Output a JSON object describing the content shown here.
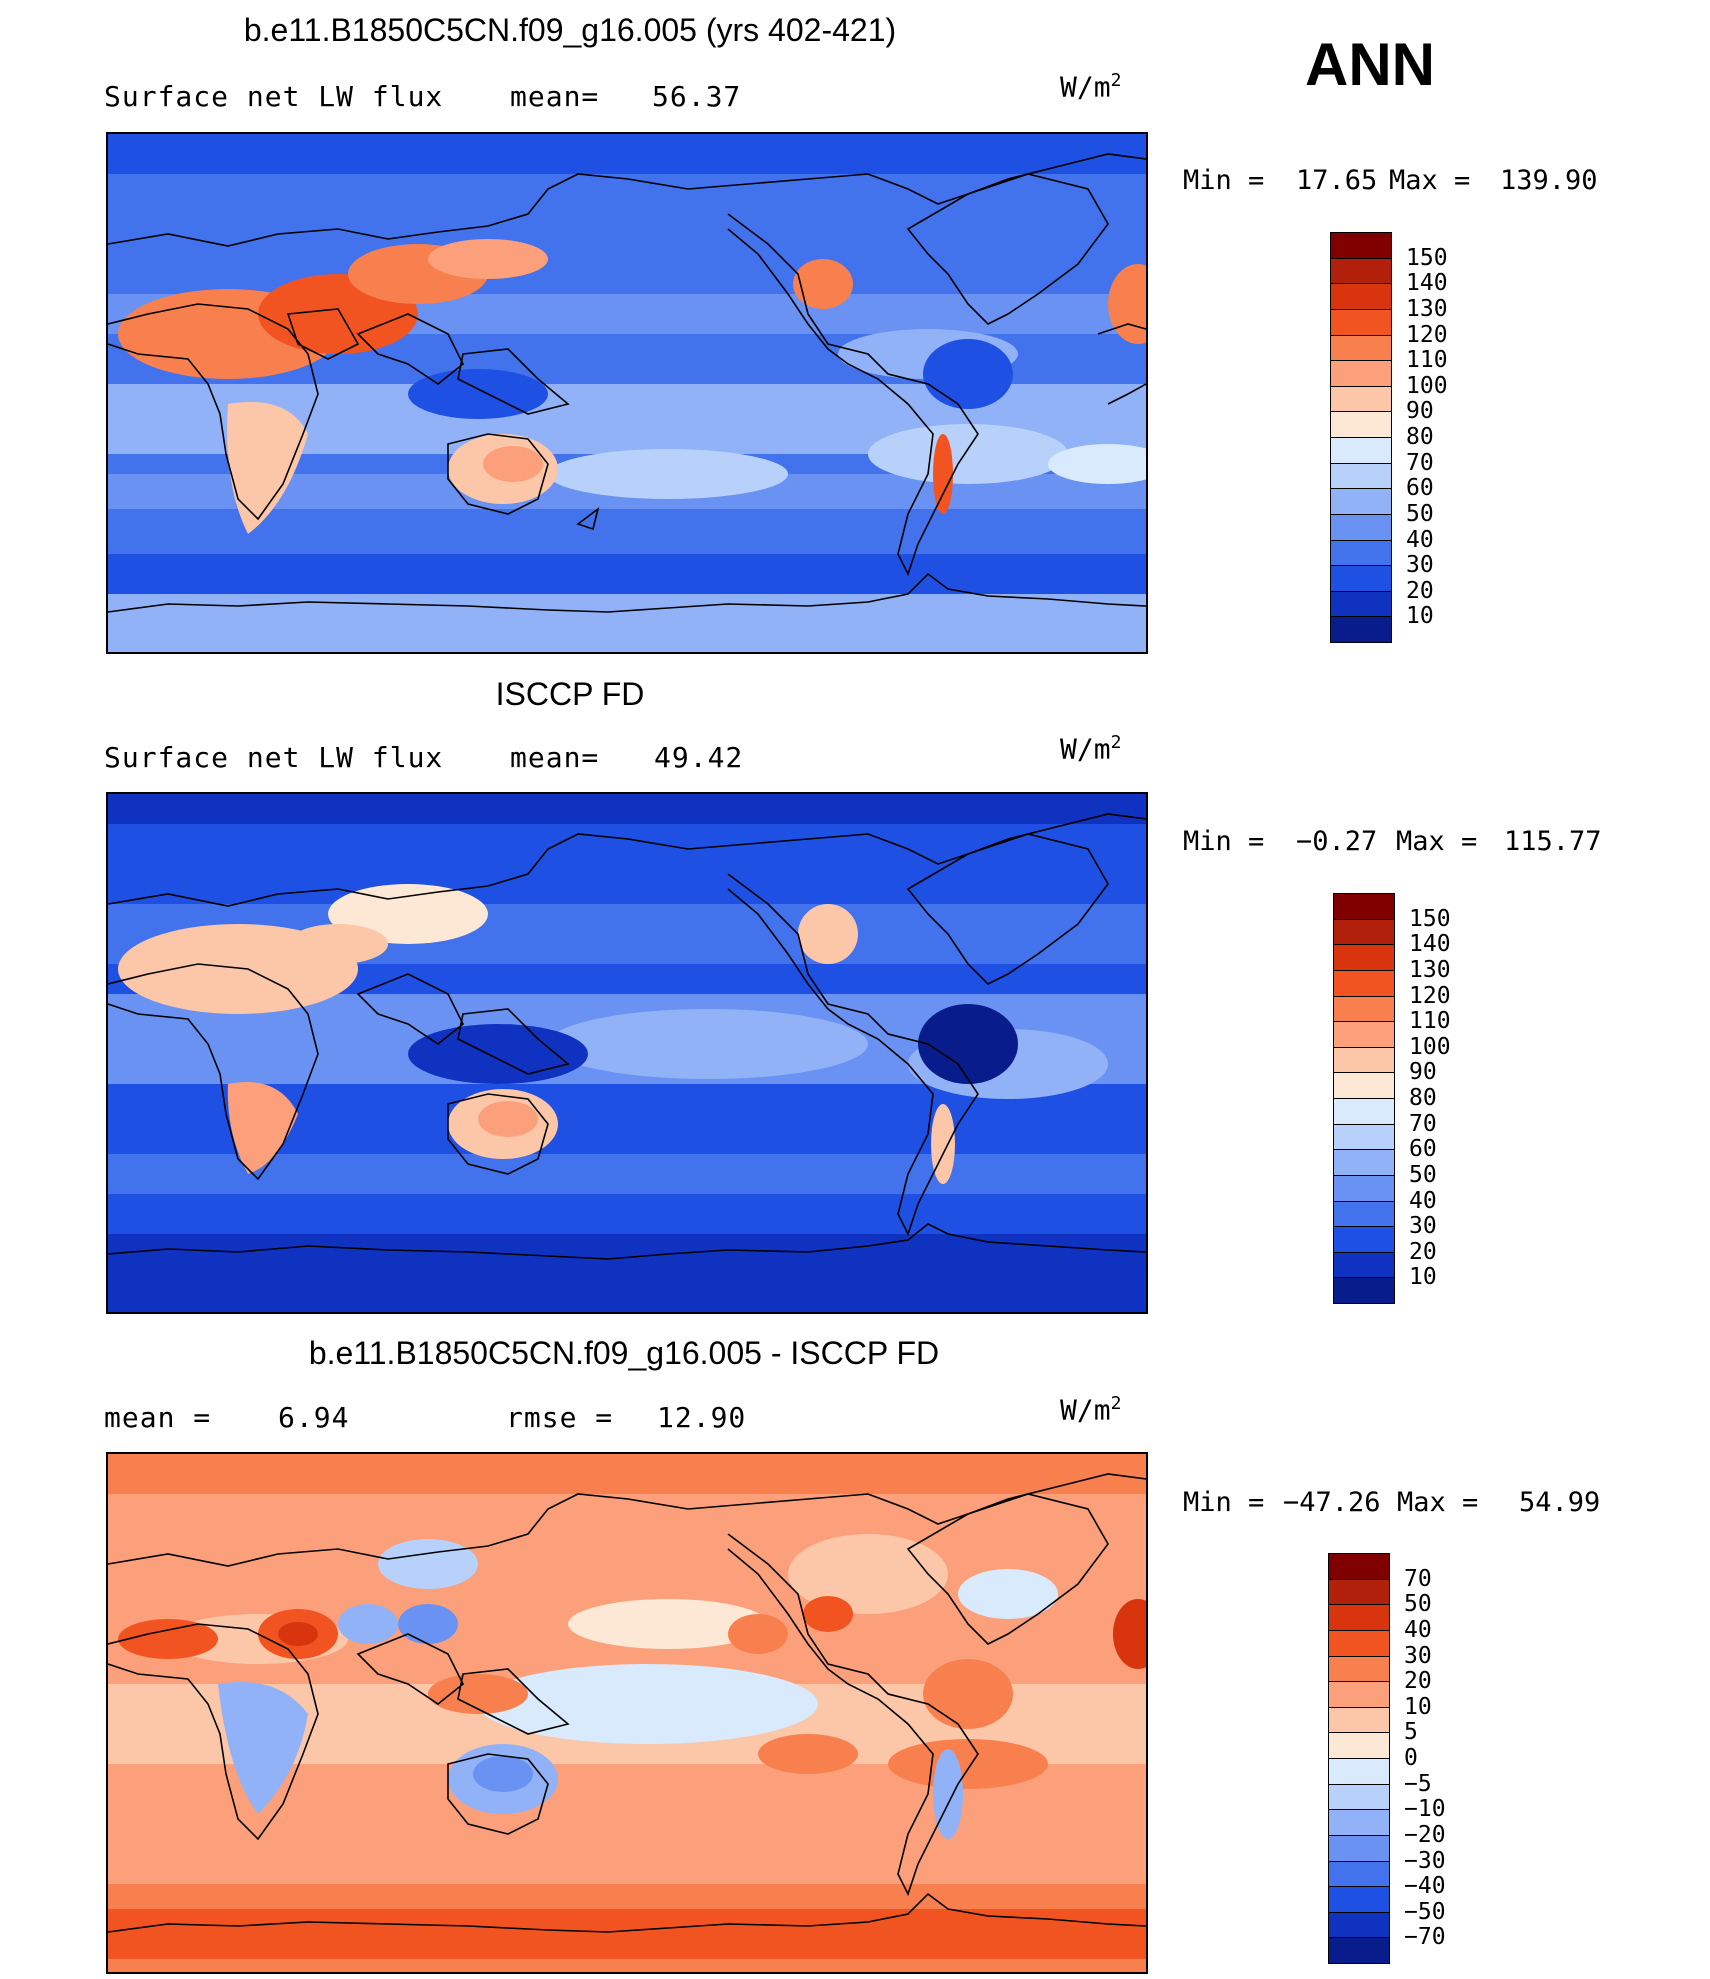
{
  "season": "ANN",
  "panels": [
    {
      "title": "b.e11.B1850C5CN.f09_g16.005 (yrs 402-421)",
      "left_label": "Surface net LW flux",
      "mean_label": "mean=",
      "mean_value": "56.37",
      "units": "W/m",
      "units_sup": "2",
      "min_text": "Min =",
      "min_value": "17.65",
      "max_text": "Max =",
      "max_value": "139.90",
      "colorbar_levels": [
        "150",
        "140",
        "130",
        "120",
        "110",
        "100",
        "90",
        "80",
        "70",
        "60",
        "50",
        "40",
        "30",
        "20",
        "10"
      ],
      "colors": [
        "#800000",
        "#b0200a",
        "#d8340e",
        "#f25421",
        "#f8804f",
        "#fba07a",
        "#fcc7a9",
        "#fde8d6",
        "#d9eafc",
        "#b8d1fb",
        "#91b2f7",
        "#6a92f2",
        "#4272ec",
        "#1e50e4",
        "#1032c0",
        "#081c8c"
      ]
    },
    {
      "title": "ISCCP FD",
      "left_label": "Surface net LW flux",
      "mean_label": "mean=",
      "mean_value": "49.42",
      "units": "W/m",
      "units_sup": "2",
      "min_text": "Min =",
      "min_value": "−0.27",
      "max_text": "Max =",
      "max_value": "115.77",
      "colorbar_levels": [
        "150",
        "140",
        "130",
        "120",
        "110",
        "100",
        "90",
        "80",
        "70",
        "60",
        "50",
        "40",
        "30",
        "20",
        "10"
      ],
      "colors": [
        "#800000",
        "#b0200a",
        "#d8340e",
        "#f25421",
        "#f8804f",
        "#fba07a",
        "#fcc7a9",
        "#fde8d6",
        "#d9eafc",
        "#b8d1fb",
        "#91b2f7",
        "#6a92f2",
        "#4272ec",
        "#1e50e4",
        "#1032c0",
        "#081c8c"
      ]
    },
    {
      "title": "b.e11.B1850C5CN.f09_g16.005 - ISCCP FD",
      "mean_label": "mean =",
      "mean_value": "6.94",
      "rmse_label": "rmse =",
      "rmse_value": "12.90",
      "units": "W/m",
      "units_sup": "2",
      "min_text": "Min =",
      "min_value": "−47.26",
      "max_text": "Max =",
      "max_value": "54.99",
      "colorbar_levels": [
        "70",
        "50",
        "40",
        "30",
        "20",
        "10",
        "5",
        "0",
        "−5",
        "−10",
        "−20",
        "−30",
        "−40",
        "−50",
        "−70"
      ],
      "colors": [
        "#800000",
        "#b0200a",
        "#d8340e",
        "#f25421",
        "#f8804f",
        "#fba07a",
        "#fcc7a9",
        "#fde8d6",
        "#d9eafc",
        "#b8d1fb",
        "#91b2f7",
        "#6a92f2",
        "#4272ec",
        "#1e50e4",
        "#1032c0",
        "#081c8c"
      ]
    }
  ],
  "chart_data": [
    {
      "type": "heatmap",
      "title": "b.e11.B1850C5CN.f09_g16.005 (yrs 402-421)",
      "variable": "Surface net LW flux",
      "units": "W/m2",
      "mean": 56.37,
      "min": 17.65,
      "max": 139.9,
      "levels": [
        10,
        20,
        30,
        40,
        50,
        60,
        70,
        80,
        90,
        100,
        110,
        120,
        130,
        140,
        150
      ]
    },
    {
      "type": "heatmap",
      "title": "ISCCP FD",
      "variable": "Surface net LW flux",
      "units": "W/m2",
      "mean": 49.42,
      "min": -0.27,
      "max": 115.77,
      "levels": [
        10,
        20,
        30,
        40,
        50,
        60,
        70,
        80,
        90,
        100,
        110,
        120,
        130,
        140,
        150
      ]
    },
    {
      "type": "heatmap",
      "title": "b.e11.B1850C5CN.f09_g16.005 - ISCCP FD",
      "units": "W/m2",
      "mean": 6.94,
      "rmse": 12.9,
      "min": -47.26,
      "max": 54.99,
      "levels": [
        -70,
        -50,
        -40,
        -30,
        -20,
        -10,
        -5,
        0,
        5,
        10,
        20,
        30,
        40,
        50,
        70
      ]
    }
  ]
}
